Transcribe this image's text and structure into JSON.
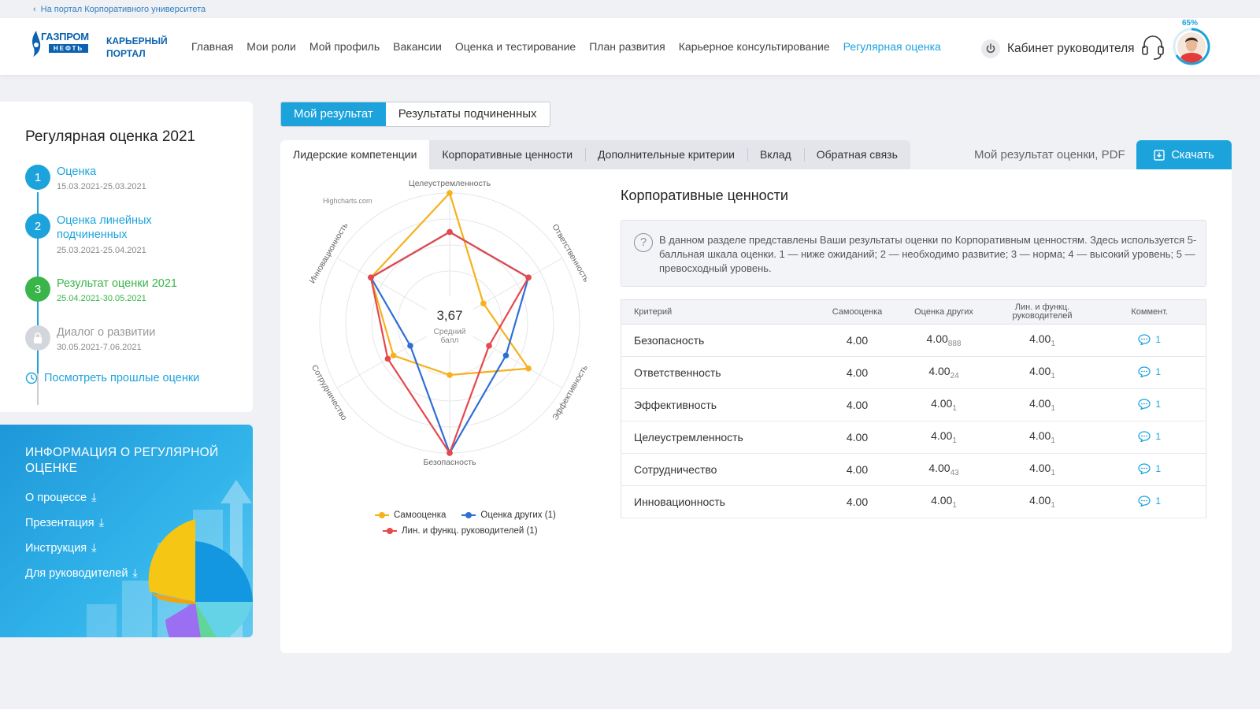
{
  "top_link": "На портал Корпоративного университета",
  "header": {
    "logo_word": "ГАЗПРОМ",
    "logo_sub": "НЕФТЬ",
    "portal_line1": "КАРЬЕРНЫЙ",
    "portal_line2": "ПОРТАЛ",
    "nav": [
      "Главная",
      "Мои роли",
      "Мой профиль",
      "Вакансии",
      "Оценка и тестирование",
      "План развития",
      "Карьерное консультирование",
      "Регулярная оценка"
    ],
    "active_nav": "Регулярная оценка",
    "cabinet": "Кабинет руководителя",
    "profile_pct": "65%"
  },
  "sidebar": {
    "title": "Регулярная оценка 2021",
    "steps": [
      {
        "num": "1",
        "title": "Оценка",
        "dates": "15.03.2021-25.03.2021",
        "state": "done"
      },
      {
        "num": "2",
        "title": "Оценка линейных подчиненных",
        "dates": "25.03.2021-25.04.2021",
        "state": "done"
      },
      {
        "num": "3",
        "title": "Результат оценки 2021",
        "dates": "25.04.2021-30.05.2021",
        "state": "current"
      },
      {
        "num": "",
        "title": "Диалог о развитии",
        "dates": "30.05.2021-7.06.2021",
        "state": "locked"
      }
    ],
    "past_link": "Посмотреть прошлые оценки"
  },
  "info": {
    "title": "ИНФОРМАЦИЯ О РЕГУЛЯРНОЙ ОЦЕНКЕ",
    "links": [
      "О процессе",
      "Презентация",
      "Инструкция",
      "Для руководителей"
    ]
  },
  "segment": {
    "my": "Мой результат",
    "subs": "Результаты подчиненных"
  },
  "tabs": [
    "Лидерские компетенции",
    "Корпоративные ценности",
    "Дополнительные критерии",
    "Вклад",
    "Обратная связь"
  ],
  "active_tab": 0,
  "pdf_label": "Мой результат оценки, PDF",
  "download_label": "Скачать",
  "chart_data": {
    "type": "radar",
    "credit": "Highcharts.com",
    "center_value": "3,67",
    "center_label1": "Средний",
    "center_label2": "балл",
    "axes": [
      "Целеустремленность",
      "Ответственность",
      "Эффективность",
      "Безопасность",
      "Сотрудничество",
      "Инновационность"
    ],
    "range": [
      0,
      5
    ],
    "series": [
      {
        "name": "Самооценка",
        "color": "#f6b11b",
        "values": [
          5,
          1.5,
          3.5,
          2,
          2.5,
          3.5
        ]
      },
      {
        "name": "Оценка других (1)",
        "color": "#2e6fd6",
        "values": [
          3.5,
          3.5,
          2.5,
          5,
          1.75,
          3.5
        ]
      },
      {
        "name": "Лин. и функц. руководителей (1)",
        "color": "#e5494d",
        "values": [
          3.5,
          3.5,
          1.75,
          5,
          2.75,
          3.5
        ]
      }
    ]
  },
  "results": {
    "title": "Корпоративные ценности",
    "note": "В данном разделе представлены Ваши результаты оценки по Корпоративным ценностям. Здесь используется 5-балльная шкала оценки. 1 — ниже ожиданий; 2 — необходимо развитие; 3 — норма; 4 — высокий уровень; 5 — превосходный уровень.",
    "headers": [
      "Критерий",
      "Самооценка",
      "Оценка других",
      "Лин. и функц. руководителей",
      "Коммент."
    ],
    "rows": [
      {
        "name": "Безопасность",
        "self": "4.00",
        "others": "4.00",
        "others_n": "888",
        "mgr": "4.00",
        "mgr_n": "1",
        "comments": "1"
      },
      {
        "name": "Ответственность",
        "self": "4.00",
        "others": "4.00",
        "others_n": "24",
        "mgr": "4.00",
        "mgr_n": "1",
        "comments": "1"
      },
      {
        "name": "Эффективность",
        "self": "4.00",
        "others": "4.00",
        "others_n": "1",
        "mgr": "4.00",
        "mgr_n": "1",
        "comments": "1"
      },
      {
        "name": "Целеустремленность",
        "self": "4.00",
        "others": "4.00",
        "others_n": "1",
        "mgr": "4.00",
        "mgr_n": "1",
        "comments": "1"
      },
      {
        "name": "Сотрудничество",
        "self": "4.00",
        "others": "4.00",
        "others_n": "43",
        "mgr": "4.00",
        "mgr_n": "1",
        "comments": "1"
      },
      {
        "name": "Инновационность",
        "self": "4.00",
        "others": "4.00",
        "others_n": "1",
        "mgr": "4.00",
        "mgr_n": "1",
        "comments": "1"
      }
    ]
  }
}
